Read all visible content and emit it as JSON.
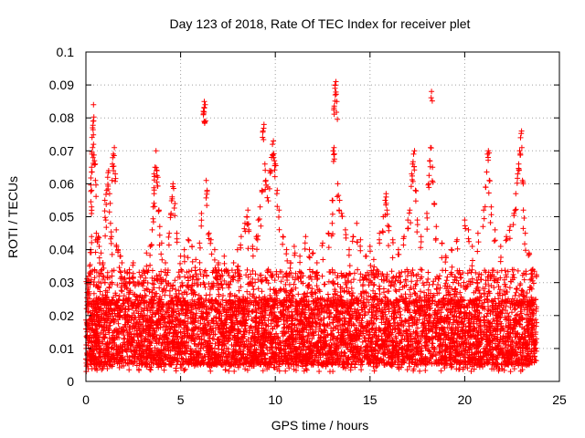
{
  "chart_data": {
    "type": "scatter",
    "title": "Day 123 of 2018, Rate Of TEC Index for receiver plet",
    "xlabel": "GPS time / hours",
    "ylabel": "ROTI / TECUs",
    "xlim": [
      0,
      25
    ],
    "ylim": [
      0,
      0.1
    ],
    "xticks": [
      0,
      5,
      10,
      15,
      20,
      25
    ],
    "xtick_labels": [
      "0",
      "5",
      "10",
      "15",
      "20",
      "25"
    ],
    "yticks": [
      0,
      0.01,
      0.02,
      0.03,
      0.04,
      0.05,
      0.06,
      0.07,
      0.08,
      0.09,
      0.1
    ],
    "ytick_labels": [
      "0",
      "0.01",
      "0.02",
      "0.03",
      "0.04",
      "0.05",
      "0.06",
      "0.07",
      "0.08",
      "0.09",
      "0.1"
    ],
    "grid": true,
    "marker": "+",
    "color": "#ff0000",
    "data_extent_x": [
      0,
      23.8
    ],
    "baseline_band": [
      0.005,
      0.025
    ],
    "series": [
      {
        "name": "ROTI",
        "points": [
          [
            0.1,
            0.028
          ],
          [
            0.15,
            0.032
          ],
          [
            0.2,
            0.035
          ],
          [
            0.25,
            0.04
          ],
          [
            0.3,
            0.044
          ],
          [
            0.3,
            0.053
          ],
          [
            0.3,
            0.058
          ],
          [
            0.3,
            0.065
          ],
          [
            0.32,
            0.069
          ],
          [
            0.35,
            0.071
          ],
          [
            0.35,
            0.077
          ],
          [
            0.38,
            0.079
          ],
          [
            0.4,
            0.084
          ],
          [
            0.4,
            0.072
          ],
          [
            0.45,
            0.067
          ],
          [
            0.5,
            0.061
          ],
          [
            0.55,
            0.045
          ],
          [
            0.6,
            0.043
          ],
          [
            0.65,
            0.044
          ],
          [
            0.7,
            0.041
          ],
          [
            0.8,
            0.039
          ],
          [
            0.9,
            0.036
          ],
          [
            1.0,
            0.055
          ],
          [
            1.05,
            0.049
          ],
          [
            1.1,
            0.058
          ],
          [
            1.15,
            0.062
          ],
          [
            1.2,
            0.064
          ],
          [
            1.25,
            0.057
          ],
          [
            1.3,
            0.048
          ],
          [
            1.35,
            0.044
          ],
          [
            1.4,
            0.066
          ],
          [
            1.45,
            0.069
          ],
          [
            1.5,
            0.071
          ],
          [
            1.55,
            0.063
          ],
          [
            1.6,
            0.046
          ],
          [
            1.7,
            0.04
          ],
          [
            1.8,
            0.038
          ],
          [
            1.9,
            0.036
          ],
          [
            2.0,
            0.031
          ],
          [
            2.3,
            0.033
          ],
          [
            2.5,
            0.036
          ],
          [
            2.6,
            0.029
          ],
          [
            3.0,
            0.029
          ],
          [
            3.2,
            0.039
          ],
          [
            3.4,
            0.041
          ],
          [
            3.5,
            0.046
          ],
          [
            3.55,
            0.053
          ],
          [
            3.6,
            0.057
          ],
          [
            3.6,
            0.063
          ],
          [
            3.65,
            0.065
          ],
          [
            3.7,
            0.07
          ],
          [
            3.75,
            0.064
          ],
          [
            3.8,
            0.062
          ],
          [
            3.85,
            0.052
          ],
          [
            3.9,
            0.047
          ],
          [
            4.0,
            0.042
          ],
          [
            4.2,
            0.036
          ],
          [
            4.4,
            0.045
          ],
          [
            4.5,
            0.051
          ],
          [
            4.55,
            0.056
          ],
          [
            4.6,
            0.06
          ],
          [
            4.7,
            0.054
          ],
          [
            4.8,
            0.045
          ],
          [
            5.0,
            0.038
          ],
          [
            5.2,
            0.04
          ],
          [
            5.4,
            0.043
          ],
          [
            5.6,
            0.041
          ],
          [
            5.8,
            0.037
          ],
          [
            6.0,
            0.042
          ],
          [
            6.1,
            0.051
          ],
          [
            6.2,
            0.082
          ],
          [
            6.25,
            0.083
          ],
          [
            6.25,
            0.085
          ],
          [
            6.3,
            0.084
          ],
          [
            6.35,
            0.061
          ],
          [
            6.4,
            0.058
          ],
          [
            6.5,
            0.045
          ],
          [
            6.6,
            0.043
          ],
          [
            6.8,
            0.04
          ],
          [
            7.0,
            0.036
          ],
          [
            7.3,
            0.038
          ],
          [
            7.5,
            0.033
          ],
          [
            7.8,
            0.036
          ],
          [
            8.0,
            0.04
          ],
          [
            8.2,
            0.044
          ],
          [
            8.4,
            0.048
          ],
          [
            8.5,
            0.05
          ],
          [
            8.55,
            0.052
          ],
          [
            8.6,
            0.046
          ],
          [
            8.8,
            0.041
          ],
          [
            9.0,
            0.044
          ],
          [
            9.1,
            0.049
          ],
          [
            9.2,
            0.053
          ],
          [
            9.3,
            0.058
          ],
          [
            9.35,
            0.076
          ],
          [
            9.4,
            0.078
          ],
          [
            9.45,
            0.066
          ],
          [
            9.5,
            0.061
          ],
          [
            9.6,
            0.059
          ],
          [
            9.7,
            0.064
          ],
          [
            9.8,
            0.068
          ],
          [
            9.85,
            0.072
          ],
          [
            9.9,
            0.073
          ],
          [
            9.95,
            0.067
          ],
          [
            10.0,
            0.066
          ],
          [
            10.1,
            0.058
          ],
          [
            10.2,
            0.052
          ],
          [
            10.4,
            0.044
          ],
          [
            10.6,
            0.04
          ],
          [
            10.8,
            0.036
          ],
          [
            11.0,
            0.041
          ],
          [
            11.3,
            0.038
          ],
          [
            11.6,
            0.044
          ],
          [
            11.8,
            0.04
          ],
          [
            12.0,
            0.039
          ],
          [
            12.2,
            0.036
          ],
          [
            12.5,
            0.042
          ],
          [
            12.8,
            0.045
          ],
          [
            13.0,
            0.048
          ],
          [
            13.0,
            0.055
          ],
          [
            13.05,
            0.07
          ],
          [
            13.1,
            0.071
          ],
          [
            13.1,
            0.083
          ],
          [
            13.15,
            0.089
          ],
          [
            13.15,
            0.09
          ],
          [
            13.2,
            0.091
          ],
          [
            13.25,
            0.085
          ],
          [
            13.3,
            0.06
          ],
          [
            13.4,
            0.055
          ],
          [
            13.5,
            0.051
          ],
          [
            13.7,
            0.046
          ],
          [
            13.9,
            0.04
          ],
          [
            14.1,
            0.044
          ],
          [
            14.3,
            0.048
          ],
          [
            14.5,
            0.043
          ],
          [
            14.8,
            0.038
          ],
          [
            15.0,
            0.041
          ],
          [
            15.2,
            0.037
          ],
          [
            15.5,
            0.045
          ],
          [
            15.7,
            0.05
          ],
          [
            15.8,
            0.055
          ],
          [
            15.85,
            0.057
          ],
          [
            15.9,
            0.052
          ],
          [
            16.0,
            0.047
          ],
          [
            16.2,
            0.043
          ],
          [
            16.5,
            0.04
          ],
          [
            16.8,
            0.044
          ],
          [
            17.0,
            0.049
          ],
          [
            17.1,
            0.052
          ],
          [
            17.2,
            0.063
          ],
          [
            17.25,
            0.066
          ],
          [
            17.3,
            0.069
          ],
          [
            17.35,
            0.07
          ],
          [
            17.4,
            0.058
          ],
          [
            17.5,
            0.049
          ],
          [
            17.7,
            0.044
          ],
          [
            18.0,
            0.051
          ],
          [
            18.1,
            0.06
          ],
          [
            18.15,
            0.067
          ],
          [
            18.2,
            0.071
          ],
          [
            18.25,
            0.088
          ],
          [
            18.3,
            0.065
          ],
          [
            18.4,
            0.054
          ],
          [
            18.5,
            0.047
          ],
          [
            18.8,
            0.042
          ],
          [
            19.0,
            0.038
          ],
          [
            19.3,
            0.04
          ],
          [
            19.6,
            0.043
          ],
          [
            20.0,
            0.049
          ],
          [
            20.2,
            0.046
          ],
          [
            20.4,
            0.041
          ],
          [
            20.7,
            0.045
          ],
          [
            21.0,
            0.052
          ],
          [
            21.1,
            0.059
          ],
          [
            21.2,
            0.069
          ],
          [
            21.25,
            0.07
          ],
          [
            21.3,
            0.061
          ],
          [
            21.4,
            0.053
          ],
          [
            21.6,
            0.046
          ],
          [
            21.9,
            0.041
          ],
          [
            22.2,
            0.044
          ],
          [
            22.4,
            0.047
          ],
          [
            22.6,
            0.051
          ],
          [
            22.7,
            0.057
          ],
          [
            22.8,
            0.063
          ],
          [
            22.85,
            0.066
          ],
          [
            22.9,
            0.07
          ],
          [
            22.95,
            0.074
          ],
          [
            23.0,
            0.076
          ],
          [
            23.05,
            0.061
          ],
          [
            23.1,
            0.052
          ],
          [
            23.2,
            0.045
          ],
          [
            23.4,
            0.039
          ],
          [
            23.6,
            0.034
          ]
        ]
      }
    ]
  }
}
